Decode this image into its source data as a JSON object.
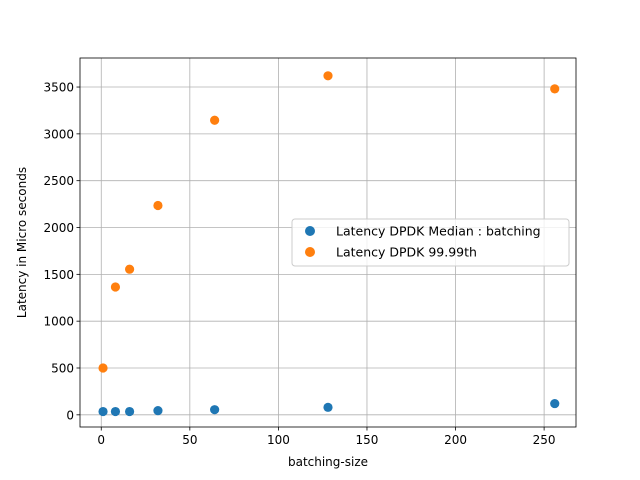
{
  "chart_data": {
    "type": "scatter",
    "title": "",
    "xlabel": "batching-size",
    "ylabel": "Latency in Micro seconds",
    "xlim": [
      -12,
      268
    ],
    "ylim": [
      -130,
      3810
    ],
    "xticks": [
      0,
      50,
      100,
      150,
      200,
      250
    ],
    "yticks": [
      0,
      500,
      1000,
      1500,
      2000,
      2500,
      3000,
      3500
    ],
    "grid": true,
    "legend_position": "center-right",
    "series": [
      {
        "name": "Latency DPDK Median : batching",
        "color": "#1f77b4",
        "x": [
          1,
          8,
          16,
          32,
          64,
          128,
          256
        ],
        "y": [
          35,
          35,
          35,
          45,
          55,
          80,
          120
        ]
      },
      {
        "name": "Latency DPDK 99.99th",
        "color": "#ff7f0e",
        "x": [
          1,
          8,
          16,
          32,
          64,
          128,
          256
        ],
        "y": [
          500,
          1365,
          1555,
          2235,
          3145,
          3620,
          3480
        ]
      }
    ]
  }
}
